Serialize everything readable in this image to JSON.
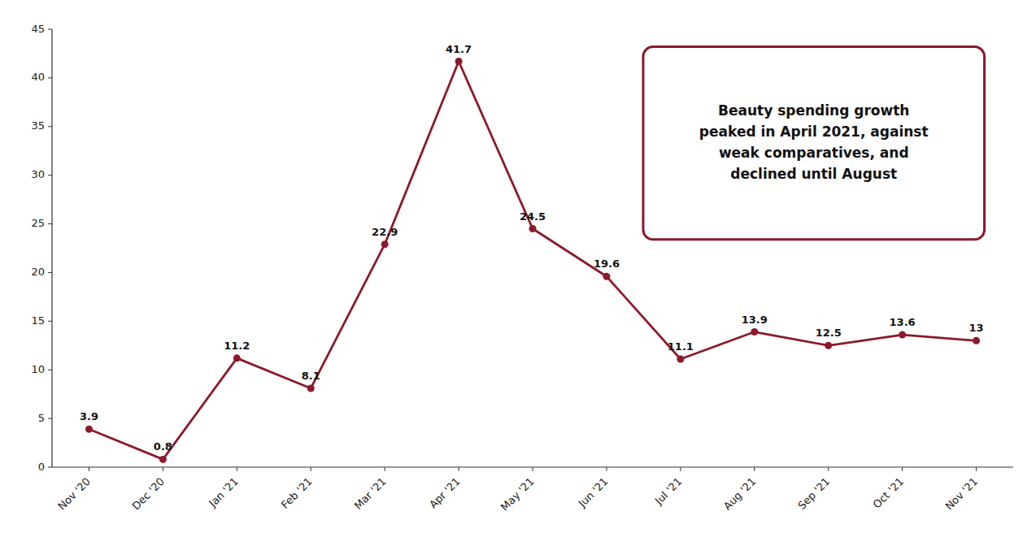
{
  "chart_data": {
    "type": "line",
    "categories": [
      "Nov '20",
      "Dec '20",
      "Jan '21",
      "Feb '21",
      "Mar '21",
      "Apr '21",
      "May '21",
      "Jun '21",
      "Jul '21",
      "Aug '21",
      "Sep '21",
      "Oct '21",
      "Nov '21"
    ],
    "values": [
      3.9,
      0.8,
      11.2,
      8.1,
      22.9,
      41.7,
      24.5,
      19.6,
      11.1,
      13.9,
      12.5,
      13.6,
      13.0
    ],
    "color": "#8B1A2A",
    "marker": "circle",
    "ylim": [
      0,
      45
    ],
    "yticks": [
      0,
      5,
      10,
      15,
      20,
      25,
      30,
      35,
      40,
      45
    ],
    "grid": false,
    "data_labels": true,
    "annotations": [
      "Beauty spending growth\npeaked in April 2021, against\nweak comparatives, and\ndeclined until August"
    ]
  }
}
